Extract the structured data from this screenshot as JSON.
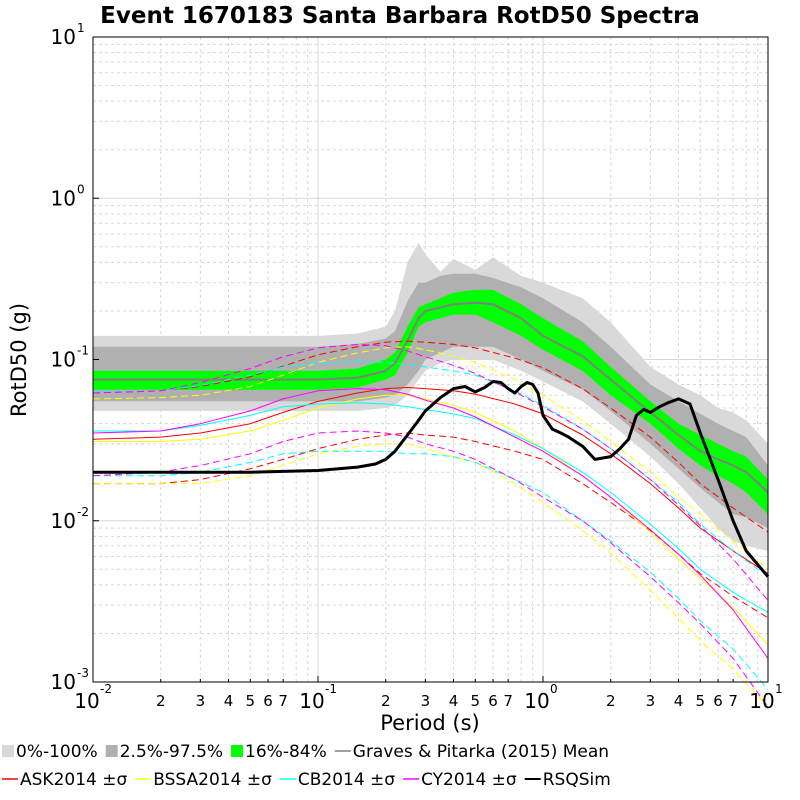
{
  "chart_data": {
    "type": "line",
    "title": "Event 1670183 Santa Barbara RotD50 Spectra",
    "xlabel": "Period (s)",
    "ylabel": "RotD50 (g)",
    "xscale": "log",
    "yscale": "log",
    "xlim": [
      0.01,
      10
    ],
    "ylim": [
      0.001,
      10
    ],
    "grid": true,
    "x_major_ticks": [
      {
        "base": "10",
        "exp": "-2"
      },
      {
        "base": "10",
        "exp": "-1"
      },
      {
        "base": "10",
        "exp": "0"
      },
      {
        "base": "10",
        "exp": "1"
      }
    ],
    "x_minor_ticks": [
      "2",
      "3",
      "4",
      "5",
      "6",
      "7"
    ],
    "y_major_ticks": [
      {
        "base": "10",
        "exp": "-3"
      },
      {
        "base": "10",
        "exp": "-2"
      },
      {
        "base": "10",
        "exp": "-1"
      },
      {
        "base": "10",
        "exp": "0"
      },
      {
        "base": "10",
        "exp": "1"
      }
    ],
    "legend": {
      "placement": "bottom",
      "rows": [
        [
          {
            "label": "0%-100%",
            "kind": "box",
            "color": "#d9d9d9"
          },
          {
            "label": "2.5%-97.5%",
            "kind": "box",
            "color": "#b0b0b0"
          },
          {
            "label": "16%-84%",
            "kind": "box",
            "color": "#00ff00"
          },
          {
            "label": "Graves & Pitarka (2015) Mean",
            "kind": "line",
            "color": "#808080"
          }
        ],
        [
          {
            "label": "ASK2014 ±σ",
            "kind": "line",
            "color": "#ff0000"
          },
          {
            "label": "BSSA2014 ±σ",
            "kind": "line",
            "color": "#ffff00"
          },
          {
            "label": "CB2014 ±σ",
            "kind": "line",
            "color": "#00ffff"
          },
          {
            "label": "CY2014 ±σ",
            "kind": "line",
            "color": "#ff00ff"
          },
          {
            "label": "RSQSim",
            "kind": "line",
            "color": "#000000"
          }
        ]
      ]
    },
    "bands": [
      {
        "name": "0%-100%",
        "color": "#d9d9d9",
        "x": [
          0.01,
          0.05,
          0.1,
          0.15,
          0.2,
          0.22,
          0.25,
          0.28,
          0.3,
          0.35,
          0.4,
          0.5,
          0.6,
          0.8,
          1,
          1.5,
          2,
          3,
          4,
          5,
          6,
          7,
          8,
          10
        ],
        "upper": [
          0.14,
          0.14,
          0.14,
          0.145,
          0.16,
          0.2,
          0.4,
          0.53,
          0.45,
          0.35,
          0.42,
          0.36,
          0.43,
          0.33,
          0.3,
          0.24,
          0.17,
          0.09,
          0.07,
          0.06,
          0.05,
          0.047,
          0.042,
          0.03
        ],
        "lower": [
          0.048,
          0.048,
          0.048,
          0.048,
          0.05,
          0.052,
          0.06,
          0.075,
          0.085,
          0.095,
          0.1,
          0.1,
          0.1,
          0.085,
          0.073,
          0.055,
          0.04,
          0.025,
          0.017,
          0.012,
          0.009,
          0.0075,
          0.007,
          0.0065
        ]
      },
      {
        "name": "2.5%-97.5%",
        "color": "#b0b0b0",
        "x": [
          0.01,
          0.05,
          0.1,
          0.15,
          0.2,
          0.22,
          0.25,
          0.28,
          0.3,
          0.35,
          0.4,
          0.5,
          0.6,
          0.8,
          1,
          1.5,
          2,
          3,
          4,
          5,
          6,
          7,
          8,
          10
        ],
        "upper": [
          0.12,
          0.12,
          0.12,
          0.125,
          0.135,
          0.15,
          0.23,
          0.3,
          0.3,
          0.33,
          0.34,
          0.34,
          0.32,
          0.28,
          0.24,
          0.17,
          0.12,
          0.07,
          0.055,
          0.046,
          0.04,
          0.036,
          0.033,
          0.022
        ],
        "lower": [
          0.055,
          0.055,
          0.055,
          0.055,
          0.058,
          0.06,
          0.07,
          0.085,
          0.1,
          0.11,
          0.12,
          0.12,
          0.12,
          0.1,
          0.085,
          0.065,
          0.048,
          0.03,
          0.021,
          0.016,
          0.013,
          0.011,
          0.0105,
          0.009
        ]
      },
      {
        "name": "16%-84%",
        "color": "#00ff00",
        "x": [
          0.01,
          0.05,
          0.1,
          0.15,
          0.2,
          0.22,
          0.25,
          0.28,
          0.3,
          0.35,
          0.4,
          0.5,
          0.6,
          0.8,
          1,
          1.5,
          2,
          3,
          4,
          5,
          6,
          7,
          8,
          10
        ],
        "upper": [
          0.085,
          0.085,
          0.085,
          0.088,
          0.1,
          0.11,
          0.16,
          0.21,
          0.22,
          0.24,
          0.26,
          0.27,
          0.27,
          0.22,
          0.18,
          0.13,
          0.09,
          0.055,
          0.04,
          0.034,
          0.03,
          0.027,
          0.025,
          0.018
        ],
        "lower": [
          0.065,
          0.065,
          0.065,
          0.067,
          0.075,
          0.08,
          0.11,
          0.16,
          0.17,
          0.18,
          0.19,
          0.19,
          0.17,
          0.14,
          0.115,
          0.085,
          0.06,
          0.04,
          0.028,
          0.022,
          0.019,
          0.017,
          0.015,
          0.011
        ]
      }
    ],
    "series": [
      {
        "name": "Graves & Pitarka (2015) Mean",
        "color": "#808080",
        "width": 2,
        "dash": "",
        "x": [
          0.01,
          0.05,
          0.1,
          0.15,
          0.2,
          0.22,
          0.25,
          0.28,
          0.3,
          0.35,
          0.4,
          0.5,
          0.6,
          0.8,
          1,
          1.5,
          2,
          3,
          4,
          5,
          6,
          7,
          8,
          10
        ],
        "y": [
          0.075,
          0.075,
          0.075,
          0.077,
          0.085,
          0.095,
          0.13,
          0.18,
          0.2,
          0.21,
          0.22,
          0.225,
          0.22,
          0.18,
          0.14,
          0.105,
          0.075,
          0.047,
          0.034,
          0.027,
          0.024,
          0.022,
          0.02,
          0.015
        ]
      },
      {
        "name": "ASK2014",
        "color": "#ff0000",
        "width": 1,
        "dash": "",
        "x": [
          0.01,
          0.02,
          0.03,
          0.05,
          0.07,
          0.1,
          0.15,
          0.2,
          0.25,
          0.3,
          0.4,
          0.5,
          0.75,
          1,
          1.5,
          2,
          3,
          4,
          5,
          7,
          10
        ],
        "y": [
          0.032,
          0.033,
          0.035,
          0.04,
          0.047,
          0.055,
          0.062,
          0.066,
          0.067,
          0.066,
          0.064,
          0.061,
          0.053,
          0.046,
          0.034,
          0.026,
          0.017,
          0.012,
          0.009,
          0.0065,
          0.0047
        ]
      },
      {
        "name": "ASK2014 +σ",
        "color": "#ff0000",
        "width": 1,
        "dash": "7,4",
        "x": [
          0.01,
          0.02,
          0.03,
          0.05,
          0.07,
          0.1,
          0.15,
          0.2,
          0.25,
          0.3,
          0.4,
          0.5,
          0.75,
          1,
          1.5,
          2,
          3,
          4,
          5,
          7,
          10
        ],
        "y": [
          0.062,
          0.064,
          0.068,
          0.078,
          0.091,
          0.107,
          0.12,
          0.128,
          0.13,
          0.128,
          0.124,
          0.118,
          0.102,
          0.089,
          0.066,
          0.05,
          0.033,
          0.023,
          0.017,
          0.012,
          0.0085
        ]
      },
      {
        "name": "ASK2014 -σ",
        "color": "#ff0000",
        "width": 1,
        "dash": "7,4",
        "x": [
          0.01,
          0.02,
          0.03,
          0.05,
          0.07,
          0.1,
          0.15,
          0.2,
          0.25,
          0.3,
          0.4,
          0.5,
          0.75,
          1,
          1.5,
          2,
          3,
          4,
          5,
          7,
          10
        ],
        "y": [
          0.017,
          0.017,
          0.018,
          0.021,
          0.024,
          0.028,
          0.032,
          0.034,
          0.035,
          0.034,
          0.033,
          0.031,
          0.027,
          0.024,
          0.017,
          0.013,
          0.0087,
          0.0062,
          0.0047,
          0.0034,
          0.0025
        ]
      },
      {
        "name": "BSSA2014",
        "color": "#ffff00",
        "width": 1,
        "dash": "",
        "x": [
          0.01,
          0.02,
          0.03,
          0.05,
          0.07,
          0.1,
          0.15,
          0.2,
          0.25,
          0.3,
          0.4,
          0.5,
          0.75,
          1,
          1.5,
          2,
          3,
          4,
          5,
          7,
          10
        ],
        "y": [
          0.031,
          0.031,
          0.032,
          0.036,
          0.042,
          0.05,
          0.057,
          0.06,
          0.06,
          0.057,
          0.052,
          0.047,
          0.036,
          0.028,
          0.019,
          0.014,
          0.0085,
          0.0058,
          0.0044,
          0.0029,
          0.0017
        ]
      },
      {
        "name": "BSSA2014 +σ",
        "color": "#ffff00",
        "width": 1,
        "dash": "7,4",
        "x": [
          0.01,
          0.02,
          0.03,
          0.05,
          0.07,
          0.1,
          0.15,
          0.2,
          0.25,
          0.3,
          0.4,
          0.5,
          0.75,
          1,
          1.5,
          2,
          3,
          4,
          5,
          7,
          10
        ],
        "y": [
          0.057,
          0.058,
          0.06,
          0.068,
          0.08,
          0.096,
          0.11,
          0.118,
          0.12,
          0.115,
          0.105,
          0.096,
          0.075,
          0.06,
          0.042,
          0.031,
          0.02,
          0.014,
          0.011,
          0.0075,
          0.005
        ]
      },
      {
        "name": "BSSA2014 -σ",
        "color": "#ffff00",
        "width": 1,
        "dash": "7,4",
        "x": [
          0.01,
          0.02,
          0.03,
          0.05,
          0.07,
          0.1,
          0.15,
          0.2,
          0.25,
          0.3,
          0.4,
          0.5,
          0.75,
          1,
          1.5,
          2,
          3,
          4,
          5,
          7,
          10
        ],
        "y": [
          0.017,
          0.017,
          0.017,
          0.019,
          0.022,
          0.026,
          0.029,
          0.03,
          0.03,
          0.028,
          0.025,
          0.023,
          0.017,
          0.013,
          0.0087,
          0.0063,
          0.0037,
          0.0025,
          0.0018,
          0.0012,
          0.0007
        ]
      },
      {
        "name": "CB2014",
        "color": "#00ffff",
        "width": 1,
        "dash": "",
        "x": [
          0.01,
          0.02,
          0.03,
          0.05,
          0.07,
          0.1,
          0.15,
          0.2,
          0.25,
          0.3,
          0.4,
          0.5,
          0.75,
          1,
          1.5,
          2,
          3,
          4,
          5,
          7,
          10
        ],
        "y": [
          0.036,
          0.036,
          0.039,
          0.045,
          0.051,
          0.053,
          0.054,
          0.053,
          0.051,
          0.049,
          0.046,
          0.043,
          0.034,
          0.028,
          0.02,
          0.015,
          0.0095,
          0.0067,
          0.005,
          0.0036,
          0.0027
        ]
      },
      {
        "name": "CB2014 +σ",
        "color": "#00ffff",
        "width": 1,
        "dash": "7,4",
        "x": [
          0.01,
          0.02,
          0.03,
          0.05,
          0.07,
          0.1,
          0.15,
          0.2,
          0.25,
          0.3,
          0.4,
          0.5,
          0.75,
          1,
          1.5,
          2,
          3,
          4,
          5,
          7,
          10
        ],
        "y": [
          0.063,
          0.064,
          0.069,
          0.08,
          0.09,
          0.095,
          0.097,
          0.096,
          0.093,
          0.09,
          0.085,
          0.08,
          0.064,
          0.052,
          0.037,
          0.028,
          0.018,
          0.013,
          0.0095,
          0.0065,
          0.0045
        ]
      },
      {
        "name": "CB2014 -σ",
        "color": "#00ffff",
        "width": 1,
        "dash": "7,4",
        "x": [
          0.01,
          0.02,
          0.03,
          0.05,
          0.07,
          0.1,
          0.15,
          0.2,
          0.25,
          0.3,
          0.4,
          0.5,
          0.75,
          1,
          1.5,
          2,
          3,
          4,
          5,
          7,
          10
        ],
        "y": [
          0.019,
          0.019,
          0.02,
          0.023,
          0.026,
          0.027,
          0.027,
          0.027,
          0.026,
          0.026,
          0.025,
          0.023,
          0.018,
          0.015,
          0.01,
          0.0075,
          0.0048,
          0.0033,
          0.0024,
          0.0016,
          0.0009
        ]
      },
      {
        "name": "CY2014",
        "color": "#ff00ff",
        "width": 1,
        "dash": "",
        "x": [
          0.01,
          0.02,
          0.03,
          0.05,
          0.07,
          0.1,
          0.15,
          0.2,
          0.25,
          0.3,
          0.4,
          0.5,
          0.75,
          1,
          1.5,
          2,
          3,
          4,
          5,
          7,
          10
        ],
        "y": [
          0.035,
          0.036,
          0.04,
          0.048,
          0.057,
          0.064,
          0.066,
          0.065,
          0.061,
          0.056,
          0.05,
          0.044,
          0.033,
          0.027,
          0.019,
          0.014,
          0.0088,
          0.0062,
          0.0046,
          0.0028,
          0.0014
        ]
      },
      {
        "name": "CY2014 +σ",
        "color": "#ff00ff",
        "width": 1,
        "dash": "7,4",
        "x": [
          0.01,
          0.02,
          0.03,
          0.05,
          0.07,
          0.1,
          0.15,
          0.2,
          0.25,
          0.3,
          0.4,
          0.5,
          0.75,
          1,
          1.5,
          2,
          3,
          4,
          5,
          7,
          10
        ],
        "y": [
          0.062,
          0.064,
          0.072,
          0.088,
          0.104,
          0.118,
          0.124,
          0.122,
          0.113,
          0.104,
          0.092,
          0.082,
          0.063,
          0.051,
          0.037,
          0.028,
          0.018,
          0.0125,
          0.0093,
          0.0058,
          0.0032
        ]
      },
      {
        "name": "CY2014 -σ",
        "color": "#ff00ff",
        "width": 1,
        "dash": "7,4",
        "x": [
          0.01,
          0.02,
          0.03,
          0.05,
          0.07,
          0.1,
          0.15,
          0.2,
          0.25,
          0.3,
          0.4,
          0.5,
          0.75,
          1,
          1.5,
          2,
          3,
          4,
          5,
          7,
          10
        ],
        "y": [
          0.019,
          0.02,
          0.022,
          0.026,
          0.031,
          0.035,
          0.036,
          0.035,
          0.033,
          0.03,
          0.027,
          0.024,
          0.018,
          0.014,
          0.01,
          0.0073,
          0.0045,
          0.0031,
          0.0023,
          0.0014,
          0.0007
        ]
      },
      {
        "name": "RSQSim",
        "color": "#000000",
        "width": 3,
        "dash": "",
        "x": [
          0.01,
          0.05,
          0.1,
          0.15,
          0.18,
          0.2,
          0.22,
          0.25,
          0.28,
          0.3,
          0.35,
          0.4,
          0.45,
          0.5,
          0.55,
          0.6,
          0.65,
          0.7,
          0.75,
          0.8,
          0.85,
          0.9,
          0.95,
          1,
          1.1,
          1.2,
          1.3,
          1.5,
          1.7,
          2,
          2.2,
          2.4,
          2.6,
          2.8,
          3,
          3.3,
          3.6,
          4,
          4.5,
          5,
          6,
          7,
          8,
          10
        ],
        "y": [
          0.02,
          0.02,
          0.0205,
          0.0215,
          0.0225,
          0.024,
          0.027,
          0.034,
          0.042,
          0.048,
          0.058,
          0.066,
          0.068,
          0.063,
          0.067,
          0.073,
          0.072,
          0.066,
          0.062,
          0.068,
          0.072,
          0.07,
          0.062,
          0.045,
          0.037,
          0.035,
          0.033,
          0.029,
          0.024,
          0.025,
          0.028,
          0.032,
          0.045,
          0.049,
          0.047,
          0.051,
          0.054,
          0.057,
          0.053,
          0.035,
          0.018,
          0.01,
          0.0065,
          0.0045
        ]
      }
    ]
  }
}
